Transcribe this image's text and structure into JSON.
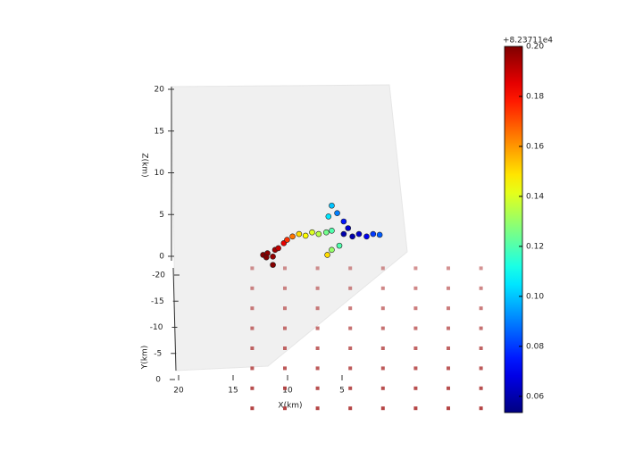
{
  "chart_data": {
    "type": "scatter3d",
    "xlabel": "X(km)",
    "ylabel": "Y(km)",
    "zlabel": "Z(km)",
    "xticks": [
      20,
      15,
      10,
      5
    ],
    "yticks": [
      -20,
      -15,
      -10,
      -5,
      0
    ],
    "zticks": [
      0,
      5,
      10,
      15,
      20
    ],
    "colormap": "jet",
    "colorbar_offset": "+8.23711e4",
    "clim": [
      0.0535,
      0.2
    ],
    "cticks": [
      0.06,
      0.08,
      {
        "value": 0.1,
        "label": "0.10"
      },
      0.12,
      0.14,
      0.16,
      0.18,
      {
        "value": 0.2,
        "label": "0.20"
      }
    ],
    "events": {
      "x": [
        12.0,
        11.6,
        11.1,
        10.9,
        11.7,
        11.1,
        10.6,
        10.1,
        9.8,
        9.3,
        8.7,
        8.1,
        7.5,
        6.9,
        6.2,
        5.7,
        6.0,
        5.7,
        5.2,
        4.6,
        4.2,
        4.6,
        3.8,
        3.2,
        2.5,
        1.9,
        1.3,
        5.7,
        5.0,
        6.1
      ],
      "y": [
        -18,
        -18,
        -18,
        -18,
        -18,
        -18,
        -18,
        -18,
        -18,
        -18,
        -18,
        -18,
        -18,
        -18,
        -18,
        -18,
        -18,
        -18,
        -18,
        -18,
        -18,
        -18,
        -18,
        -18,
        -18,
        -18,
        -18,
        -18,
        -18,
        -18
      ],
      "z": [
        3.4,
        3.6,
        3.2,
        4.0,
        3.1,
        2.2,
        4.2,
        4.8,
        5.2,
        5.6,
        5.9,
        5.7,
        6.1,
        5.9,
        6.1,
        6.3,
        8.0,
        9.3,
        8.4,
        7.4,
        6.6,
        5.9,
        5.6,
        5.9,
        5.6,
        5.9,
        5.8,
        4.0,
        4.5,
        3.4
      ],
      "t": [
        0.2,
        0.198,
        0.197,
        0.195,
        0.2,
        0.199,
        0.19,
        0.185,
        0.175,
        0.165,
        0.15,
        0.145,
        0.14,
        0.135,
        0.125,
        0.12,
        0.105,
        0.1,
        0.09,
        0.075,
        0.065,
        0.06,
        0.06,
        0.065,
        0.07,
        0.08,
        0.085,
        0.13,
        0.12,
        0.15
      ]
    },
    "stations": {
      "color": "#b03a3a",
      "x": [
        13,
        10,
        7,
        4,
        1,
        -2,
        -5,
        -8,
        13,
        10,
        7,
        4,
        1,
        -2,
        -5,
        -8,
        13,
        10,
        7,
        4,
        1,
        -2,
        -5,
        -8,
        13,
        10,
        7,
        4,
        1,
        -2,
        -5,
        -8,
        13,
        10,
        7,
        4,
        1,
        -2,
        -5,
        -8,
        13,
        10,
        7,
        4,
        1,
        -2,
        -5,
        -8,
        13,
        10,
        7,
        4,
        1,
        -2,
        -5,
        -8,
        13,
        10,
        7,
        4,
        1,
        -2,
        -5,
        -8
      ],
      "y": [
        -21,
        -21,
        -21,
        -21,
        -21,
        -21,
        -21,
        -21,
        -17,
        -17,
        -17,
        -17,
        -17,
        -17,
        -17,
        -17,
        -13,
        -13,
        -13,
        -13,
        -13,
        -13,
        -13,
        -13,
        -9,
        -9,
        -9,
        -9,
        -9,
        -9,
        -9,
        -9,
        -5,
        -5,
        -5,
        -5,
        -5,
        -5,
        -5,
        -5,
        -1,
        -1,
        -1,
        -1,
        -1,
        -1,
        -1,
        -1,
        3,
        3,
        3,
        3,
        3,
        3,
        3,
        3,
        7,
        7,
        7,
        7,
        7,
        7,
        7,
        7
      ]
    }
  }
}
